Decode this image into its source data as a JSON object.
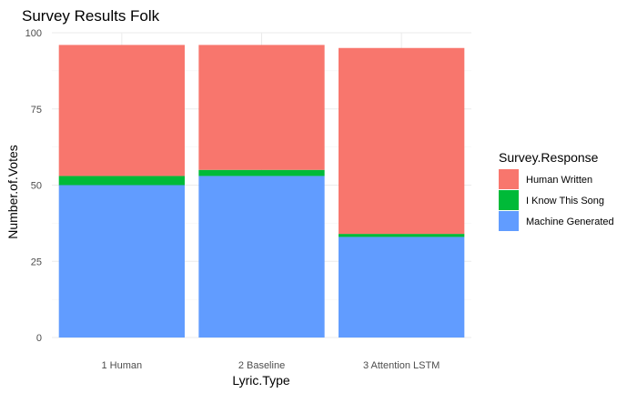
{
  "chart_data": {
    "type": "bar",
    "stacked": true,
    "title": "Survey Results Folk",
    "xlabel": "Lyric.Type",
    "ylabel": "Number.of.Votes",
    "categories": [
      "1 Human",
      "2 Baseline",
      "3 Attention LSTM"
    ],
    "ylim": [
      0,
      100
    ],
    "yticks": [
      0,
      25,
      50,
      75,
      100
    ],
    "grid": true,
    "legend": {
      "title": "Survey.Response",
      "placement": "right",
      "items": [
        "Human Written",
        "I Know This Song",
        "Machine Generated"
      ]
    },
    "series": [
      {
        "name": "Machine Generated",
        "values": [
          50,
          53,
          33
        ],
        "color": "#619cff"
      },
      {
        "name": "I Know This Song",
        "values": [
          3,
          2,
          1
        ],
        "color": "#00ba38"
      },
      {
        "name": "Human Written",
        "values": [
          43,
          41,
          61
        ],
        "color": "#f8766d"
      }
    ]
  }
}
